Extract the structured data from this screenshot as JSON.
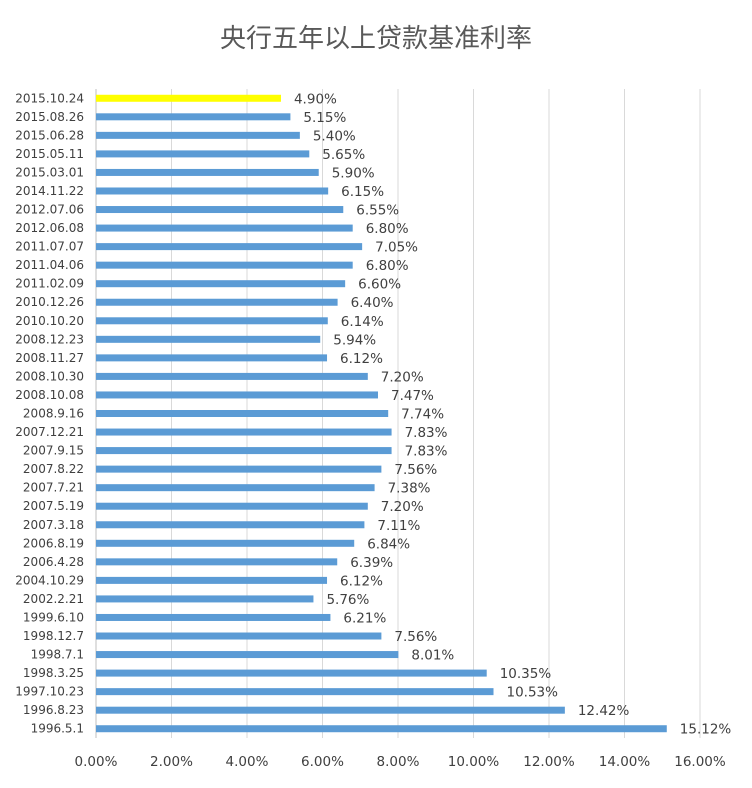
{
  "chart_data": {
    "type": "bar",
    "orientation": "horizontal",
    "title": "央行五年以上贷款基准利率",
    "xlabel": "",
    "ylabel": "",
    "xlim": [
      0,
      16
    ],
    "x_ticks": [
      "0.00%",
      "2.00%",
      "4.00%",
      "6.00%",
      "8.00%",
      "10.00%",
      "12.00%",
      "14.00%",
      "16.00%"
    ],
    "grid": true,
    "legend": "none",
    "colors": {
      "bar": "#5B9BD5",
      "highlight": "#FFFF00",
      "grid": "#D9D9D9",
      "text": "#404040"
    },
    "highlight_index": 0,
    "categories": [
      "2015.10.24",
      "2015.08.26",
      "2015.06.28",
      "2015.05.11",
      "2015.03.01",
      "2014.11.22",
      "2012.07.06",
      "2012.06.08",
      "2011.07.07",
      "2011.04.06",
      "2011.02.09",
      "2010.12.26",
      "2010.10.20",
      "2008.12.23",
      "2008.11.27",
      "2008.10.30",
      "2008.10.08",
      "2008.9.16",
      "2007.12.21",
      "2007.9.15",
      "2007.8.22",
      "2007.7.21",
      "2007.5.19",
      "2007.3.18",
      "2006.8.19",
      "2006.4.28",
      "2004.10.29",
      "2002.2.21",
      "1999.6.10",
      "1998.12.7",
      "1998.7.1",
      "1998.3.25",
      "1997.10.23",
      "1996.8.23",
      "1996.5.1"
    ],
    "values": [
      4.9,
      5.15,
      5.4,
      5.65,
      5.9,
      6.15,
      6.55,
      6.8,
      7.05,
      6.8,
      6.6,
      6.4,
      6.14,
      5.94,
      6.12,
      7.2,
      7.47,
      7.74,
      7.83,
      7.83,
      7.56,
      7.38,
      7.2,
      7.11,
      6.84,
      6.39,
      6.12,
      5.76,
      6.21,
      7.56,
      8.01,
      10.35,
      10.53,
      12.42,
      15.12
    ],
    "value_labels": [
      "4.90%",
      "5.15%",
      "5.40%",
      "5.65%",
      "5.90%",
      "6.15%",
      "6.55%",
      "6.80%",
      "7.05%",
      "6.80%",
      "6.60%",
      "6.40%",
      "6.14%",
      "5.94%",
      "6.12%",
      "7.20%",
      "7.47%",
      "7.74%",
      "7.83%",
      "7.83%",
      "7.56%",
      "7.38%",
      "7.20%",
      "7.11%",
      "6.84%",
      "6.39%",
      "6.12%",
      "5.76%",
      "6.21%",
      "7.56%",
      "8.01%",
      "10.35%",
      "10.53%",
      "12.42%",
      "15.12%"
    ]
  }
}
